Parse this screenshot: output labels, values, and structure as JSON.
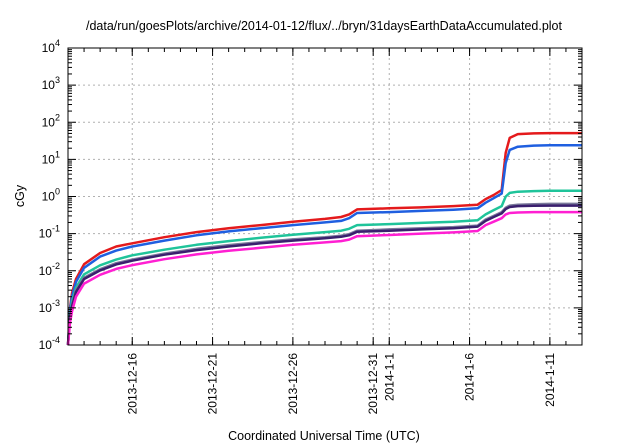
{
  "chart_data": {
    "type": "line",
    "title": "/data/run/goesPlots/archive/2014-01-12/flux/../bryn/31daysEarthDataAccumulated.plot",
    "xlabel": "Coordinated Universal Time (UTC)",
    "ylabel": "cGy",
    "y_scale": "log",
    "ylim": [
      0.0001,
      10000
    ],
    "xlim": [
      "2013-12-12",
      "2014-01-13"
    ],
    "grid": true,
    "legend": "none",
    "x_ticks": [
      {
        "date": "2013-12-16",
        "label": "2013-12-16"
      },
      {
        "date": "2013-12-21",
        "label": "2013-12-21"
      },
      {
        "date": "2013-12-26",
        "label": "2013-12-26"
      },
      {
        "date": "2013-12-31",
        "label": "2013-12-31"
      },
      {
        "date": "2014-01-01",
        "label": "2014-1-1"
      },
      {
        "date": "2014-01-06",
        "label": "2014-1-6"
      },
      {
        "date": "2014-01-11",
        "label": "2014-1-11"
      }
    ],
    "y_ticks": [
      {
        "value": 0.0001,
        "base": "10",
        "exp": "-4"
      },
      {
        "value": 0.001,
        "base": "10",
        "exp": "-3"
      },
      {
        "value": 0.01,
        "base": "10",
        "exp": "-2"
      },
      {
        "value": 0.1,
        "base": "10",
        "exp": "-1"
      },
      {
        "value": 1,
        "base": "10",
        "exp": "0"
      },
      {
        "value": 10,
        "base": "10",
        "exp": "1"
      },
      {
        "value": 100,
        "base": "10",
        "exp": "2"
      },
      {
        "value": 1000,
        "base": "10",
        "exp": "3"
      },
      {
        "value": 10000,
        "base": "10",
        "exp": "4"
      }
    ],
    "series": [
      {
        "color": "#e41a1c",
        "x": [
          "2013-12-12T00:00",
          "2013-12-12T03:00",
          "2013-12-12T06:00",
          "2013-12-12T12:00",
          "2013-12-13T00:00",
          "2013-12-14T00:00",
          "2013-12-15T00:00",
          "2013-12-16T00:00",
          "2013-12-18T00:00",
          "2013-12-20T00:00",
          "2013-12-22T00:00",
          "2013-12-24T00:00",
          "2013-12-26T00:00",
          "2013-12-28T00:00",
          "2013-12-29T00:00",
          "2013-12-29T12:00",
          "2013-12-30T00:00",
          "2014-01-01T00:00",
          "2014-01-03T00:00",
          "2014-01-05T00:00",
          "2014-01-06T12:00",
          "2014-01-07T00:00",
          "2014-01-07T12:00",
          "2014-01-08T00:00",
          "2014-01-08T06:00",
          "2014-01-08T12:00",
          "2014-01-09T00:00",
          "2014-01-10T00:00",
          "2014-01-11T00:00",
          "2014-01-12T00:00",
          "2014-01-13T00:00"
        ],
        "y": [
          0.0001,
          0.001,
          0.0025,
          0.006,
          0.015,
          0.03,
          0.045,
          0.055,
          0.08,
          0.11,
          0.14,
          0.17,
          0.21,
          0.25,
          0.28,
          0.33,
          0.45,
          0.48,
          0.51,
          0.55,
          0.6,
          0.85,
          1.1,
          1.5,
          15,
          38,
          48,
          50,
          51,
          51,
          51
        ]
      },
      {
        "color": "#1f5fe0",
        "x": [
          "2013-12-12T00:00",
          "2013-12-12T03:00",
          "2013-12-12T06:00",
          "2013-12-12T12:00",
          "2013-12-13T00:00",
          "2013-12-14T00:00",
          "2013-12-15T00:00",
          "2013-12-16T00:00",
          "2013-12-18T00:00",
          "2013-12-20T00:00",
          "2013-12-22T00:00",
          "2013-12-24T00:00",
          "2013-12-26T00:00",
          "2013-12-28T00:00",
          "2013-12-29T00:00",
          "2013-12-29T12:00",
          "2013-12-30T00:00",
          "2014-01-01T00:00",
          "2014-01-03T00:00",
          "2014-01-05T00:00",
          "2014-01-06T12:00",
          "2014-01-07T00:00",
          "2014-01-07T12:00",
          "2014-01-08T00:00",
          "2014-01-08T06:00",
          "2014-01-08T12:00",
          "2014-01-09T00:00",
          "2014-01-10T00:00",
          "2014-01-11T00:00",
          "2014-01-12T00:00",
          "2014-01-13T00:00"
        ],
        "y": [
          0.0001,
          0.0009,
          0.002,
          0.005,
          0.012,
          0.024,
          0.035,
          0.045,
          0.065,
          0.09,
          0.115,
          0.14,
          0.17,
          0.2,
          0.22,
          0.26,
          0.36,
          0.38,
          0.41,
          0.44,
          0.48,
          0.68,
          0.9,
          1.2,
          8,
          18,
          22,
          23.5,
          24,
          24,
          24
        ]
      },
      {
        "color": "#1fc49a",
        "x": [
          "2013-12-12T00:00",
          "2013-12-12T03:00",
          "2013-12-12T06:00",
          "2013-12-12T12:00",
          "2013-12-13T00:00",
          "2013-12-14T00:00",
          "2013-12-15T00:00",
          "2013-12-16T00:00",
          "2013-12-18T00:00",
          "2013-12-20T00:00",
          "2013-12-22T00:00",
          "2013-12-24T00:00",
          "2013-12-26T00:00",
          "2013-12-28T00:00",
          "2013-12-29T00:00",
          "2013-12-29T12:00",
          "2013-12-30T00:00",
          "2014-01-01T00:00",
          "2014-01-03T00:00",
          "2014-01-05T00:00",
          "2014-01-06T12:00",
          "2014-01-07T00:00",
          "2014-01-07T12:00",
          "2014-01-08T00:00",
          "2014-01-08T06:00",
          "2014-01-08T12:00",
          "2014-01-09T00:00",
          "2014-01-10T00:00",
          "2014-01-11T00:00",
          "2014-01-12T00:00",
          "2014-01-13T00:00"
        ],
        "y": [
          0.0001,
          0.0007,
          0.0015,
          0.0035,
          0.008,
          0.014,
          0.02,
          0.026,
          0.037,
          0.05,
          0.063,
          0.077,
          0.093,
          0.11,
          0.12,
          0.135,
          0.17,
          0.18,
          0.195,
          0.21,
          0.23,
          0.33,
          0.43,
          0.55,
          1.0,
          1.25,
          1.35,
          1.4,
          1.42,
          1.43,
          1.43
        ]
      },
      {
        "color": "#7a7a9a",
        "x": [
          "2013-12-12T00:00",
          "2013-12-12T03:00",
          "2013-12-12T06:00",
          "2013-12-12T12:00",
          "2013-12-13T00:00",
          "2013-12-14T00:00",
          "2013-12-15T00:00",
          "2013-12-16T00:00",
          "2013-12-18T00:00",
          "2013-12-20T00:00",
          "2013-12-22T00:00",
          "2013-12-24T00:00",
          "2013-12-26T00:00",
          "2013-12-28T00:00",
          "2013-12-29T00:00",
          "2013-12-29T12:00",
          "2013-12-30T00:00",
          "2014-01-01T00:00",
          "2014-01-03T00:00",
          "2014-01-05T00:00",
          "2014-01-06T12:00",
          "2014-01-07T00:00",
          "2014-01-07T12:00",
          "2014-01-08T00:00",
          "2014-01-08T06:00",
          "2014-01-08T12:00",
          "2014-01-09T00:00",
          "2014-01-10T00:00",
          "2014-01-11T00:00",
          "2014-01-12T00:00",
          "2014-01-13T00:00"
        ],
        "y": [
          0.0001,
          0.0006,
          0.0012,
          0.003,
          0.0065,
          0.011,
          0.016,
          0.02,
          0.029,
          0.039,
          0.049,
          0.059,
          0.07,
          0.08,
          0.088,
          0.097,
          0.12,
          0.13,
          0.14,
          0.15,
          0.165,
          0.24,
          0.3,
          0.38,
          0.5,
          0.57,
          0.6,
          0.62,
          0.63,
          0.63,
          0.63
        ]
      },
      {
        "color": "#3a1f6e",
        "x": [
          "2013-12-12T00:00",
          "2013-12-12T03:00",
          "2013-12-12T06:00",
          "2013-12-12T12:00",
          "2013-12-13T00:00",
          "2013-12-14T00:00",
          "2013-12-15T00:00",
          "2013-12-16T00:00",
          "2013-12-18T00:00",
          "2013-12-20T00:00",
          "2013-12-22T00:00",
          "2013-12-24T00:00",
          "2013-12-26T00:00",
          "2013-12-28T00:00",
          "2013-12-29T00:00",
          "2013-12-29T12:00",
          "2013-12-30T00:00",
          "2014-01-01T00:00",
          "2014-01-03T00:00",
          "2014-01-05T00:00",
          "2014-01-06T12:00",
          "2014-01-07T00:00",
          "2014-01-07T12:00",
          "2014-01-08T00:00",
          "2014-01-08T06:00",
          "2014-01-08T12:00",
          "2014-01-09T00:00",
          "2014-01-10T00:00",
          "2014-01-11T00:00",
          "2014-01-12T00:00",
          "2014-01-13T00:00"
        ],
        "y": [
          0.0001,
          0.00055,
          0.0011,
          0.0027,
          0.006,
          0.0102,
          0.0148,
          0.0186,
          0.027,
          0.036,
          0.045,
          0.055,
          0.065,
          0.075,
          0.082,
          0.09,
          0.112,
          0.12,
          0.13,
          0.14,
          0.155,
          0.22,
          0.28,
          0.35,
          0.46,
          0.52,
          0.55,
          0.56,
          0.57,
          0.57,
          0.57
        ]
      },
      {
        "color": "#ff1fd2",
        "x": [
          "2013-12-12T00:00",
          "2013-12-12T03:00",
          "2013-12-12T06:00",
          "2013-12-12T12:00",
          "2013-12-13T00:00",
          "2013-12-14T00:00",
          "2013-12-15T00:00",
          "2013-12-16T00:00",
          "2013-12-18T00:00",
          "2013-12-20T00:00",
          "2013-12-22T00:00",
          "2013-12-24T00:00",
          "2013-12-26T00:00",
          "2013-12-28T00:00",
          "2013-12-29T00:00",
          "2013-12-29T12:00",
          "2013-12-30T00:00",
          "2014-01-01T00:00",
          "2014-01-03T00:00",
          "2014-01-05T00:00",
          "2014-01-06T12:00",
          "2014-01-07T00:00",
          "2014-01-07T12:00",
          "2014-01-08T00:00",
          "2014-01-08T06:00",
          "2014-01-08T12:00",
          "2014-01-09T00:00",
          "2014-01-10T00:00",
          "2014-01-11T00:00",
          "2014-01-12T00:00",
          "2014-01-13T00:00"
        ],
        "y": [
          0.0001,
          0.0004,
          0.0008,
          0.002,
          0.0045,
          0.0078,
          0.0112,
          0.0142,
          0.0205,
          0.0275,
          0.0345,
          0.0415,
          0.05,
          0.058,
          0.063,
          0.069,
          0.085,
          0.092,
          0.1,
          0.108,
          0.118,
          0.17,
          0.21,
          0.26,
          0.33,
          0.36,
          0.37,
          0.38,
          0.38,
          0.38,
          0.38
        ]
      }
    ]
  }
}
